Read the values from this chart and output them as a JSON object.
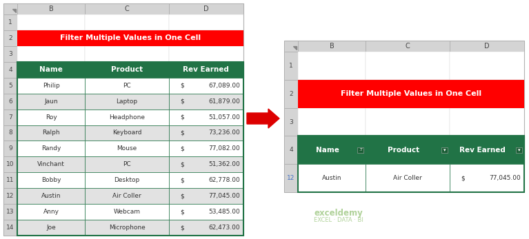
{
  "title": "Filter Multiple Values in One Cell",
  "title_color": "#FFFFFF",
  "title_bg_color": "#FF0000",
  "header_bg_color": "#217346",
  "header_text_color": "#FFFFFF",
  "row_bg_even": "#FFFFFF",
  "row_bg_odd": "#E2E2E2",
  "border_color": "#217346",
  "cell_text_color": "#333333",
  "col_headers": [
    "Name",
    "Product",
    "Rev Earned"
  ],
  "rows": [
    [
      "Philip",
      "PC",
      "67,089.00"
    ],
    [
      "Jaun",
      "Laptop",
      "61,879.00"
    ],
    [
      "Roy",
      "Headphone",
      "51,057.00"
    ],
    [
      "Ralph",
      "Keyboard",
      "73,236.00"
    ],
    [
      "Randy",
      "Mouse",
      "77,082.00"
    ],
    [
      "Vinchant",
      "PC",
      "51,362.00"
    ],
    [
      "Bobby",
      "Desktop",
      "62,778.00"
    ],
    [
      "Austin",
      "Air Coller",
      "77,045.00"
    ],
    [
      "Anny",
      "Webcam",
      "53,485.00"
    ],
    [
      "Joe",
      "Microphone",
      "62,473.00"
    ]
  ],
  "filtered_col_headers": [
    "Name",
    "Product",
    "Rev Earned"
  ],
  "filtered_rows": [
    [
      "Austin",
      "Air Coller",
      "77,045.00"
    ]
  ],
  "excel_logo_color": "#70AD47",
  "watermark_line1": "exceldemy",
  "watermark_line2": "EXCEL · DATA · BI",
  "background_color": "#FFFFFF",
  "sheet_header_bg": "#D4D4D4",
  "sheet_bg": "#F2F2F2",
  "sheet_border_color": "#AAAAAA",
  "arrow_color": "#DD0000"
}
